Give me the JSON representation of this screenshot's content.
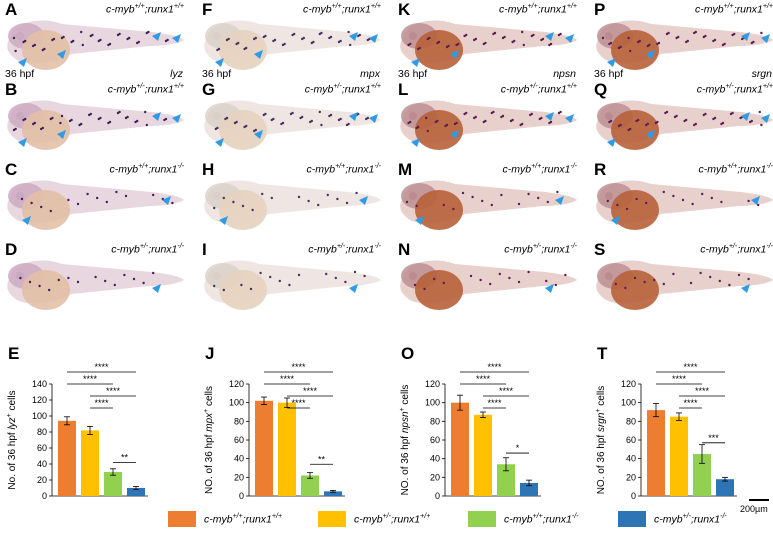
{
  "panels": [
    {
      "letter": "A",
      "geno_a": "c-myb",
      "sup_a": "+/+",
      "geno_b": ";runx1",
      "sup_b": "+/+",
      "hpf": "36 hpf",
      "gene": "lyz",
      "style": "violet"
    },
    {
      "letter": "B",
      "geno_a": "c-myb",
      "sup_a": "+/-",
      "geno_b": ";runx1",
      "sup_b": "+/+",
      "hpf": "",
      "gene": "",
      "style": "violet"
    },
    {
      "letter": "C",
      "geno_a": "c-myb",
      "sup_a": "+/+",
      "geno_b": ";runx1",
      "sup_b": "-/-",
      "hpf": "",
      "gene": "",
      "style": "violet"
    },
    {
      "letter": "D",
      "geno_a": "c-myb",
      "sup_a": "+/-",
      "geno_b": ";runx1",
      "sup_b": "-/-",
      "hpf": "",
      "gene": "",
      "style": "violet"
    },
    {
      "letter": "F",
      "geno_a": "c-myb",
      "sup_a": "+/+",
      "geno_b": ";runx1",
      "sup_b": "+/+",
      "hpf": "36 hpf",
      "gene": "mpx",
      "style": "pale"
    },
    {
      "letter": "G",
      "geno_a": "c-myb",
      "sup_a": "+/-",
      "geno_b": ";runx1",
      "sup_b": "+/+",
      "hpf": "",
      "gene": "",
      "style": "pale"
    },
    {
      "letter": "H",
      "geno_a": "c-myb",
      "sup_a": "+/+",
      "geno_b": ";runx1",
      "sup_b": "-/-",
      "hpf": "",
      "gene": "",
      "style": "pale"
    },
    {
      "letter": "I",
      "geno_a": "c-myb",
      "sup_a": "+/-",
      "geno_b": ";runx1",
      "sup_b": "-/-",
      "hpf": "",
      "gene": "",
      "style": "pale"
    },
    {
      "letter": "K",
      "geno_a": "c-myb",
      "sup_a": "+/+",
      "geno_b": ";runx1",
      "sup_b": "+/+",
      "hpf": "36 hpf",
      "gene": "npsn",
      "style": "brown"
    },
    {
      "letter": "L",
      "geno_a": "c-myb",
      "sup_a": "+/-",
      "geno_b": ";runx1",
      "sup_b": "+/+",
      "hpf": "",
      "gene": "",
      "style": "brown"
    },
    {
      "letter": "M",
      "geno_a": "c-myb",
      "sup_a": "+/+",
      "geno_b": ";runx1",
      "sup_b": "-/-",
      "hpf": "",
      "gene": "",
      "style": "brown"
    },
    {
      "letter": "N",
      "geno_a": "c-myb",
      "sup_a": "+/-",
      "geno_b": ";runx1",
      "sup_b": "-/-",
      "hpf": "",
      "gene": "",
      "style": "brown"
    },
    {
      "letter": "P",
      "geno_a": "c-myb",
      "sup_a": "+/+",
      "geno_b": ";runx1",
      "sup_b": "+/+",
      "hpf": "36 hpf",
      "gene": "srgn",
      "style": "brown"
    },
    {
      "letter": "Q",
      "geno_a": "c-myb",
      "sup_a": "+/-",
      "geno_b": ";runx1",
      "sup_b": "+/+",
      "hpf": "",
      "gene": "",
      "style": "brown"
    },
    {
      "letter": "R",
      "geno_a": "c-myb",
      "sup_a": "+/+",
      "geno_b": ";runx1",
      "sup_b": "-/-",
      "hpf": "",
      "gene": "",
      "style": "brown"
    },
    {
      "letter": "S",
      "geno_a": "c-myb",
      "sup_a": "+/-",
      "geno_b": ";runx1",
      "sup_b": "-/-",
      "hpf": "",
      "gene": "",
      "style": "brown"
    }
  ],
  "scale_bar": "200µm",
  "chart_data": [
    {
      "panel": "E",
      "type": "bar",
      "ylabel_pre": "No. of 36 hpf ",
      "ylabel_gene": "lyz",
      "ylabel_sup": "+",
      "ylabel_post": " cells",
      "ylim": [
        0,
        140
      ],
      "yticks": [
        0,
        20,
        40,
        60,
        80,
        100,
        120,
        140
      ],
      "values": [
        94,
        82,
        30,
        10
      ],
      "errors": [
        5,
        5,
        4,
        2
      ],
      "sig": [
        {
          "from": 0,
          "to": 3,
          "label": "****"
        },
        {
          "from": 0,
          "to": 2,
          "label": "****"
        },
        {
          "from": 1,
          "to": 3,
          "label": "****"
        },
        {
          "from": 1,
          "to": 2,
          "label": "****"
        },
        {
          "from": 2,
          "to": 3,
          "label": "**"
        }
      ]
    },
    {
      "panel": "J",
      "type": "bar",
      "ylabel_pre": "NO. of 36 hpf ",
      "ylabel_gene": "mpx",
      "ylabel_sup": "+",
      "ylabel_post": " cells",
      "ylim": [
        0,
        120
      ],
      "yticks": [
        0,
        20,
        40,
        60,
        80,
        100,
        120
      ],
      "values": [
        102,
        100,
        22,
        5
      ],
      "errors": [
        4,
        5,
        3,
        1
      ],
      "sig": [
        {
          "from": 0,
          "to": 3,
          "label": "****"
        },
        {
          "from": 0,
          "to": 2,
          "label": "****"
        },
        {
          "from": 1,
          "to": 3,
          "label": "****"
        },
        {
          "from": 1,
          "to": 2,
          "label": "****"
        },
        {
          "from": 2,
          "to": 3,
          "label": "**"
        }
      ]
    },
    {
      "panel": "O",
      "type": "bar",
      "ylabel_pre": "NO. of 36 hpf ",
      "ylabel_gene": "npsn",
      "ylabel_sup": "+",
      "ylabel_post": " cells",
      "ylim": [
        0,
        120
      ],
      "yticks": [
        0,
        20,
        40,
        60,
        80,
        100,
        120
      ],
      "values": [
        100,
        87,
        34,
        14
      ],
      "errors": [
        8,
        3,
        7,
        3
      ],
      "sig": [
        {
          "from": 0,
          "to": 3,
          "label": "****"
        },
        {
          "from": 0,
          "to": 2,
          "label": "****"
        },
        {
          "from": 1,
          "to": 3,
          "label": "****"
        },
        {
          "from": 1,
          "to": 2,
          "label": "****"
        },
        {
          "from": 2,
          "to": 3,
          "label": "*"
        }
      ]
    },
    {
      "panel": "T",
      "type": "bar",
      "ylabel_pre": "NO. of 36 hpf ",
      "ylabel_gene": "srgn",
      "ylabel_sup": "+",
      "ylabel_post": " cells",
      "ylim": [
        0,
        120
      ],
      "yticks": [
        0,
        20,
        40,
        60,
        80,
        100,
        120
      ],
      "values": [
        92,
        85,
        45,
        18
      ],
      "errors": [
        7,
        4,
        10,
        2
      ],
      "sig": [
        {
          "from": 0,
          "to": 3,
          "label": "****"
        },
        {
          "from": 0,
          "to": 2,
          "label": "****"
        },
        {
          "from": 1,
          "to": 3,
          "label": "****"
        },
        {
          "from": 1,
          "to": 2,
          "label": "****"
        },
        {
          "from": 2,
          "to": 3,
          "label": "***"
        }
      ]
    }
  ],
  "series_colors": [
    "#ED7D31",
    "#FFC000",
    "#92D050",
    "#2E75B6"
  ],
  "legend": [
    {
      "a": "c-myb",
      "sa": "+/+",
      "b": ";runx1",
      "sb": "+/+",
      "color": "#ED7D31"
    },
    {
      "a": "c-myb",
      "sa": "+/-",
      "b": ";runx1",
      "sb": "+/+",
      "color": "#FFC000"
    },
    {
      "a": "c-myb",
      "sa": "+/+",
      "b": ";runx1",
      "sb": "-/-",
      "color": "#92D050"
    },
    {
      "a": "c-myb",
      "sa": "+/-",
      "b": ";runx1",
      "sb": "-/-",
      "color": "#2E75B6"
    }
  ]
}
